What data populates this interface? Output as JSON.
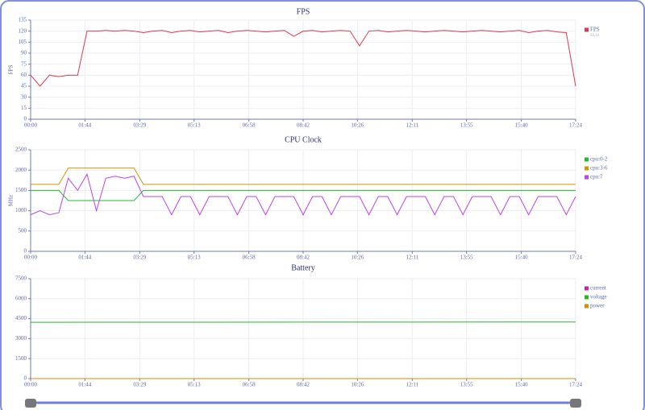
{
  "chart_data": [
    {
      "type": "line",
      "title": "FPS",
      "y_label": "FPS",
      "grid": true,
      "legend_note": "93.43",
      "xlim": [
        0,
        1044
      ],
      "xticks": [
        {
          "value": 0,
          "label": "00:00"
        },
        {
          "value": 104,
          "label": "01:44"
        },
        {
          "value": 209,
          "label": "03:29"
        },
        {
          "value": 313,
          "label": "05:13"
        },
        {
          "value": 418,
          "label": "06:58"
        },
        {
          "value": 522,
          "label": "08:42"
        },
        {
          "value": 626,
          "label": "10:26"
        },
        {
          "value": 731,
          "label": "12:11"
        },
        {
          "value": 835,
          "label": "13:55"
        },
        {
          "value": 940,
          "label": "15:40"
        },
        {
          "value": 1044,
          "label": "17:24"
        }
      ],
      "ylim": [
        0,
        135
      ],
      "yticks": [
        0,
        15,
        30,
        45,
        60,
        75,
        90,
        105,
        120,
        135
      ],
      "x": [
        0,
        18,
        36,
        54,
        72,
        90,
        108,
        126,
        144,
        162,
        180,
        198,
        216,
        234,
        252,
        270,
        288,
        306,
        324,
        342,
        360,
        378,
        396,
        414,
        432,
        450,
        468,
        486,
        504,
        522,
        540,
        558,
        576,
        594,
        612,
        630,
        648,
        666,
        684,
        702,
        720,
        738,
        756,
        774,
        792,
        810,
        828,
        846,
        864,
        882,
        900,
        918,
        936,
        954,
        972,
        990,
        1008,
        1026,
        1044
      ],
      "series": [
        {
          "name": "FPS",
          "color": "#e0384f",
          "values": [
            60,
            45,
            60,
            58,
            60,
            60,
            120,
            120,
            121,
            120,
            121,
            120,
            118,
            120,
            121,
            118,
            120,
            121,
            119,
            120,
            121,
            118,
            120,
            121,
            120,
            119,
            120,
            121,
            113,
            120,
            121,
            119,
            120,
            121,
            120,
            100,
            120,
            121,
            119,
            120,
            121,
            120,
            119,
            120,
            121,
            120,
            119,
            120,
            121,
            120,
            119,
            120,
            121,
            118,
            120,
            121,
            119,
            118,
            45
          ]
        }
      ]
    },
    {
      "type": "line",
      "title": "CPU Clock",
      "y_label": "MHz",
      "grid": true,
      "xlim": [
        0,
        1044
      ],
      "xticks": [
        {
          "value": 0,
          "label": "00:00"
        },
        {
          "value": 104,
          "label": "01:44"
        },
        {
          "value": 209,
          "label": "03:29"
        },
        {
          "value": 313,
          "label": "05:13"
        },
        {
          "value": 418,
          "label": "06:58"
        },
        {
          "value": 522,
          "label": "08:42"
        },
        {
          "value": 626,
          "label": "10:26"
        },
        {
          "value": 731,
          "label": "12:11"
        },
        {
          "value": 835,
          "label": "13:55"
        },
        {
          "value": 940,
          "label": "15:40"
        },
        {
          "value": 1044,
          "label": "17:24"
        }
      ],
      "ylim": [
        0,
        2500
      ],
      "yticks": [
        0,
        500,
        1000,
        1500,
        2000,
        2500
      ],
      "x": [
        0,
        18,
        36,
        54,
        72,
        90,
        108,
        126,
        144,
        162,
        180,
        198,
        216,
        234,
        252,
        270,
        288,
        306,
        324,
        342,
        360,
        378,
        396,
        414,
        432,
        450,
        468,
        486,
        504,
        522,
        540,
        558,
        576,
        594,
        612,
        630,
        648,
        666,
        684,
        702,
        720,
        738,
        756,
        774,
        792,
        810,
        828,
        846,
        864,
        882,
        900,
        918,
        936,
        954,
        972,
        990,
        1008,
        1026,
        1044
      ],
      "series": [
        {
          "name": "cpu:0-2",
          "color": "#22bb33",
          "values": [
            1500,
            1500,
            1500,
            1500,
            1250,
            1250,
            1250,
            1250,
            1250,
            1250,
            1250,
            1250,
            1500,
            1500,
            1500,
            1500,
            1500,
            1500,
            1500,
            1500,
            1500,
            1500,
            1500,
            1500,
            1500,
            1500,
            1500,
            1500,
            1500,
            1500,
            1500,
            1500,
            1500,
            1500,
            1500,
            1500,
            1500,
            1500,
            1500,
            1500,
            1500,
            1500,
            1500,
            1500,
            1500,
            1500,
            1500,
            1500,
            1500,
            1500,
            1500,
            1500,
            1500,
            1500,
            1500,
            1500,
            1500,
            1500,
            1500
          ]
        },
        {
          "name": "cpu:3-6",
          "color": "#cc9900",
          "values": [
            1650,
            1650,
            1650,
            1650,
            2050,
            2050,
            2050,
            2050,
            2050,
            2050,
            2050,
            2050,
            1650,
            1650,
            1650,
            1650,
            1650,
            1650,
            1650,
            1650,
            1650,
            1650,
            1650,
            1650,
            1650,
            1650,
            1650,
            1650,
            1650,
            1650,
            1650,
            1650,
            1650,
            1650,
            1650,
            1650,
            1650,
            1650,
            1650,
            1650,
            1650,
            1650,
            1650,
            1650,
            1650,
            1650,
            1650,
            1650,
            1650,
            1650,
            1650,
            1650,
            1650,
            1650,
            1650,
            1650,
            1650,
            1650,
            1650
          ]
        },
        {
          "name": "cpu:7",
          "color": "#bb44ee",
          "values": [
            900,
            1000,
            900,
            950,
            1800,
            1500,
            1900,
            1000,
            1800,
            1850,
            1800,
            1850,
            1350,
            1350,
            1350,
            900,
            1350,
            1350,
            900,
            1350,
            1350,
            1350,
            900,
            1350,
            1350,
            900,
            1350,
            1350,
            1350,
            900,
            1350,
            1350,
            900,
            1350,
            1350,
            1350,
            900,
            1350,
            1350,
            900,
            1350,
            1350,
            1350,
            900,
            1350,
            1350,
            900,
            1350,
            1350,
            1350,
            900,
            1350,
            1350,
            900,
            1350,
            1350,
            1350,
            900,
            1350
          ]
        }
      ]
    },
    {
      "type": "line",
      "title": "Battery",
      "grid": true,
      "xlim": [
        0,
        1044
      ],
      "xticks": [
        {
          "value": 0,
          "label": "00:00"
        },
        {
          "value": 104,
          "label": "01:44"
        },
        {
          "value": 209,
          "label": "03:29"
        },
        {
          "value": 313,
          "label": "05:13"
        },
        {
          "value": 418,
          "label": "06:58"
        },
        {
          "value": 522,
          "label": "08:42"
        },
        {
          "value": 626,
          "label": "10:26"
        },
        {
          "value": 731,
          "label": "12:11"
        },
        {
          "value": 835,
          "label": "13:55"
        },
        {
          "value": 940,
          "label": "15:40"
        },
        {
          "value": 1044,
          "label": "17:24"
        }
      ],
      "ylim": [
        0,
        7500
      ],
      "yticks": [
        0,
        1500,
        3000,
        4500,
        6000,
        7500
      ],
      "x": [
        0,
        1044
      ],
      "series": [
        {
          "name": "current",
          "color": "#cc22aa",
          "values": [
            0,
            0
          ]
        },
        {
          "name": "voltage",
          "color": "#22bb22",
          "values": [
            4230,
            4250
          ]
        },
        {
          "name": "power",
          "color": "#dd8800",
          "values": [
            0,
            0
          ]
        }
      ]
    }
  ]
}
